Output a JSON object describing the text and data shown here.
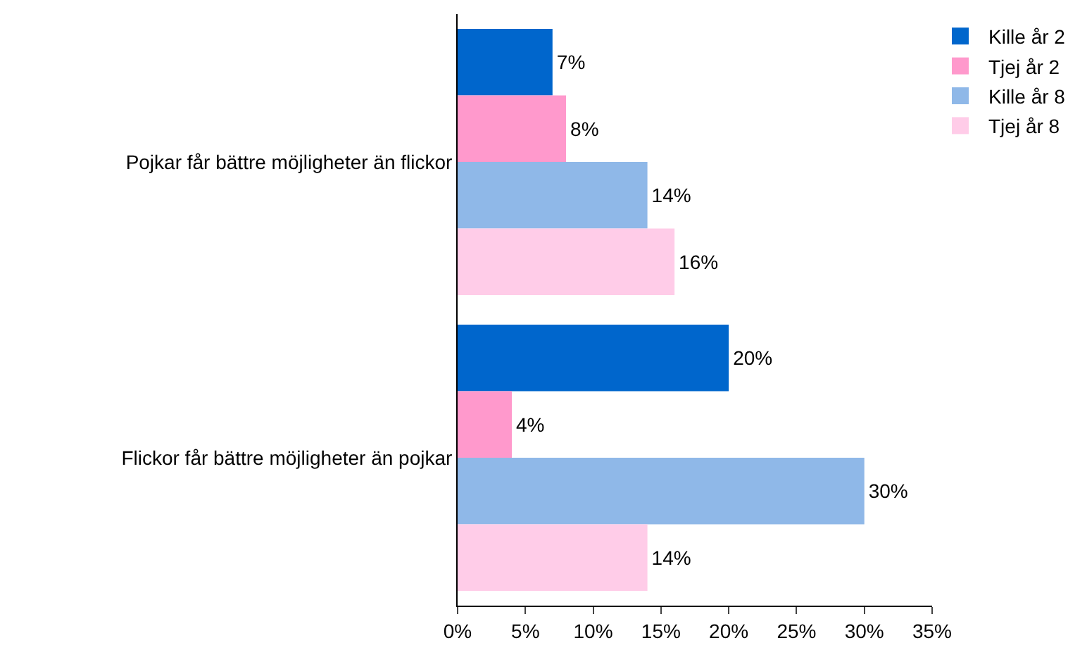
{
  "chart_data": {
    "type": "bar",
    "orientation": "horizontal",
    "categories": [
      "Pojkar får bättre möjligheter än flickor",
      "Flickor får bättre möjligheter än pojkar"
    ],
    "series": [
      {
        "name": "Kille år 2",
        "color": "#0066cc",
        "values": [
          7,
          20
        ],
        "value_labels": [
          "7%",
          "20%"
        ]
      },
      {
        "name": "Tjej år 2",
        "color": "#ff99cc",
        "values": [
          8,
          4
        ],
        "value_labels": [
          "8%",
          "4%"
        ]
      },
      {
        "name": "Kille år 8",
        "color": "#8fb8e8",
        "values": [
          14,
          30
        ],
        "value_labels": [
          "14%",
          "30%"
        ]
      },
      {
        "name": "Tjej år 8",
        "color": "#ffcce8",
        "values": [
          16,
          14
        ],
        "value_labels": [
          "16%",
          "14%"
        ]
      }
    ],
    "xlim": [
      0,
      35
    ],
    "xticks": [
      {
        "value": 0,
        "label": "0%"
      },
      {
        "value": 5,
        "label": "5%"
      },
      {
        "value": 10,
        "label": "10%"
      },
      {
        "value": 15,
        "label": "15%"
      },
      {
        "value": 20,
        "label": "20%"
      },
      {
        "value": 25,
        "label": "25%"
      },
      {
        "value": 30,
        "label": "30%"
      },
      {
        "value": 35,
        "label": "35%"
      }
    ],
    "legend": "right"
  }
}
